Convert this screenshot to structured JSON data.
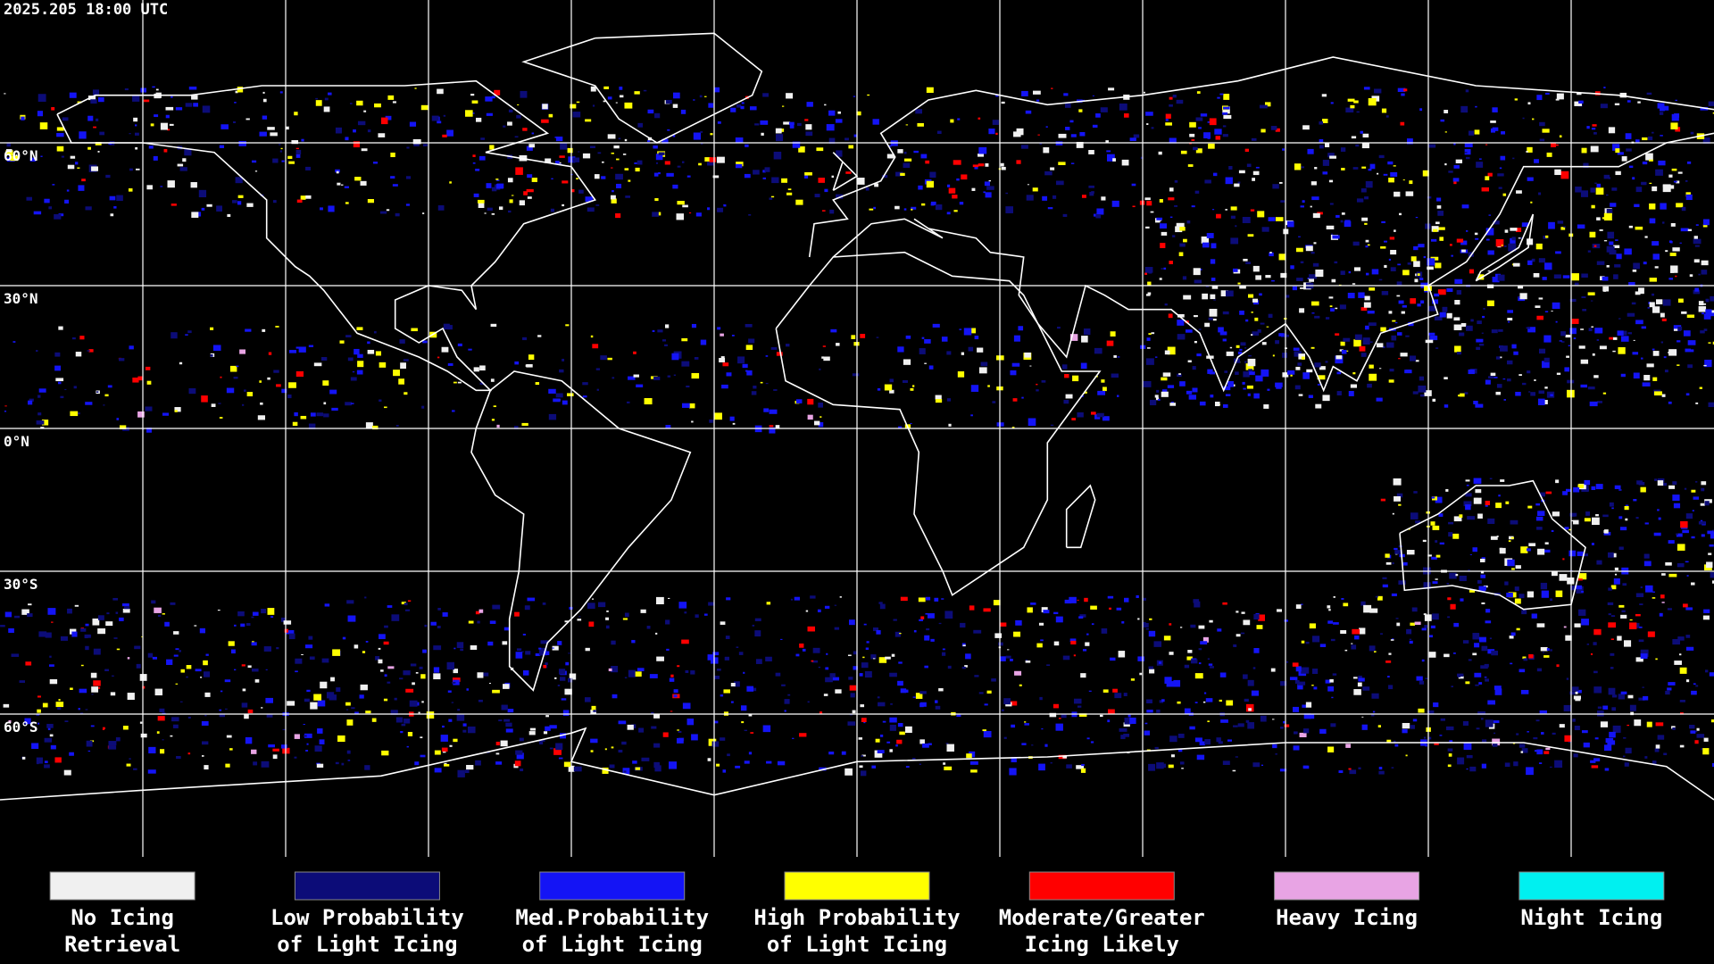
{
  "header": {
    "timestamp": "2025.205 18:00 UTC"
  },
  "graticule": {
    "latitude_labels": [
      "60°N",
      "30°N",
      "0°N",
      "30°S",
      "60°S"
    ]
  },
  "legend": {
    "items": [
      {
        "lines": [
          "No Icing",
          "Retrieval"
        ],
        "color": "#f0f0f0"
      },
      {
        "lines": [
          "Low Probability",
          "of Light Icing"
        ],
        "color": "#0c0c78"
      },
      {
        "lines": [
          "Med.Probability",
          "of Light Icing"
        ],
        "color": "#1414f5"
      },
      {
        "lines": [
          "High Probability",
          "of Light Icing"
        ],
        "color": "#ffff00"
      },
      {
        "lines": [
          "Moderate/Greater",
          "Icing Likely"
        ],
        "color": "#ff0000"
      },
      {
        "lines": [
          "Heavy Icing"
        ],
        "color": "#e8a4e4"
      },
      {
        "lines": [
          "Night Icing"
        ],
        "color": "#00f0f0"
      }
    ]
  }
}
